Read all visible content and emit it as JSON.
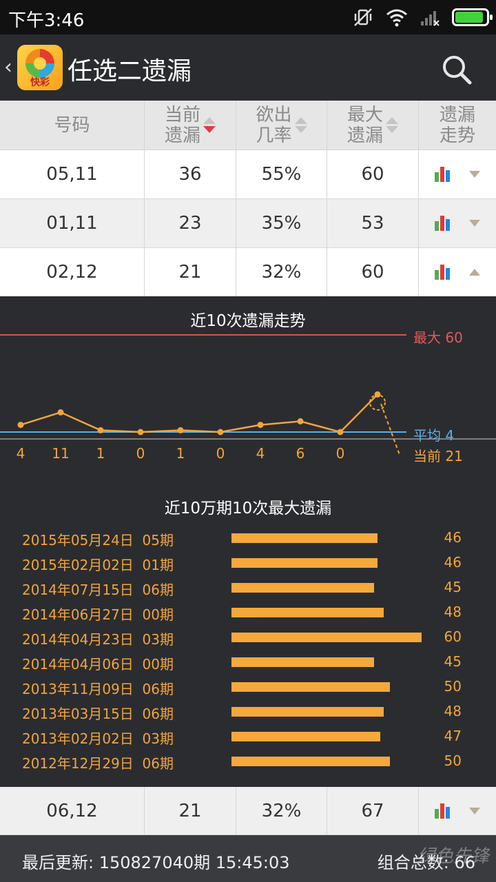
{
  "status_bar": {
    "time": "下午3:46",
    "battery_level": 0.92
  },
  "app_bar": {
    "back_glyph": "‹",
    "logo_text": "快彩",
    "title": "任选二遗漏"
  },
  "table": {
    "headers": [
      "号码",
      "当前遗漏",
      "欲出几率",
      "最大遗漏",
      "遗漏走势"
    ],
    "header_lines": [
      [
        "号码"
      ],
      [
        "当前",
        "遗漏"
      ],
      [
        "欲出",
        "几率"
      ],
      [
        "最大",
        "遗漏"
      ],
      [
        "遗漏",
        "走势"
      ]
    ],
    "rows": [
      {
        "number": "05,11",
        "current": "36",
        "chance": "55%",
        "max": "60",
        "expanded": false
      },
      {
        "number": "01,11",
        "current": "23",
        "chance": "35%",
        "max": "53",
        "expanded": false
      },
      {
        "number": "02,12",
        "current": "21",
        "chance": "32%",
        "max": "60",
        "expanded": true
      }
    ]
  },
  "trend_chart": {
    "title": "近10次遗漏走势",
    "max_label": "最大 60",
    "avg_label": "平均 4",
    "current_label": "当前 21",
    "ticks": [
      "4",
      "11",
      "1",
      "0",
      "1",
      "0",
      "4",
      "6",
      "0"
    ],
    "colors": {
      "line": "#f2a53a",
      "max": "#e25a5a",
      "avg": "#5ab0e6"
    }
  },
  "history_chart": {
    "title": "近10万期10次最大遗漏",
    "rows": [
      {
        "date": "2015年05月24日",
        "issue": "05期",
        "value": "46"
      },
      {
        "date": "2015年02月02日",
        "issue": "01期",
        "value": "46"
      },
      {
        "date": "2014年07月15日",
        "issue": "06期",
        "value": "45"
      },
      {
        "date": "2014年06月27日",
        "issue": "00期",
        "value": "48"
      },
      {
        "date": "2014年04月23日",
        "issue": "03期",
        "value": "60"
      },
      {
        "date": "2014年04月06日",
        "issue": "00期",
        "value": "45"
      },
      {
        "date": "2013年11月09日",
        "issue": "06期",
        "value": "50"
      },
      {
        "date": "2013年03月15日",
        "issue": "06期",
        "value": "48"
      },
      {
        "date": "2013年02月02日",
        "issue": "03期",
        "value": "47"
      },
      {
        "date": "2012年12月29日",
        "issue": "06期",
        "value": "50"
      }
    ]
  },
  "bottom_row": {
    "number": "06,12",
    "current": "21",
    "chance": "32%",
    "max": "67"
  },
  "footer": {
    "last_update": "最后更新: 150827040期  15:45:03",
    "total": "组合总数: 66",
    "watermark": "绿色先锋"
  },
  "chart_data": [
    {
      "type": "line",
      "title": "近10次遗漏走势",
      "x": [
        1,
        2,
        3,
        4,
        5,
        6,
        7,
        8,
        9,
        10
      ],
      "series": [
        {
          "values": [
            4,
            11,
            1,
            0,
            1,
            0,
            4,
            6,
            0,
            21
          ]
        }
      ],
      "reference_lines": [
        {
          "label": "最大",
          "value": 60
        },
        {
          "label": "平均",
          "value": 4
        }
      ],
      "ylim": [
        0,
        60
      ]
    },
    {
      "type": "bar",
      "title": "近10万期10次最大遗漏",
      "categories": [
        "2015年05月24日 05期",
        "2015年02月02日 01期",
        "2014年07月15日 06期",
        "2014年06月27日 00期",
        "2014年04月23日 03期",
        "2014年04月06日 00期",
        "2013年11月09日 06期",
        "2013年03月15日 06期",
        "2013年02月02日 03期",
        "2012年12月29日 06期"
      ],
      "values": [
        46,
        46,
        45,
        48,
        60,
        45,
        50,
        48,
        47,
        50
      ],
      "xlim": [
        0,
        60
      ]
    }
  ]
}
